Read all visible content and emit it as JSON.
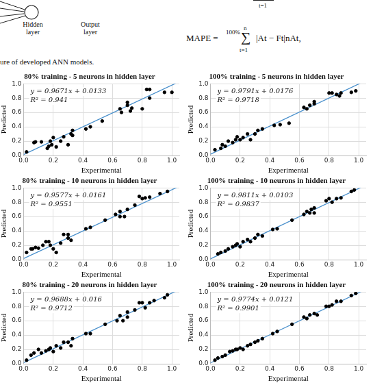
{
  "header": {
    "diagram_labels": [
      "Hidden layer",
      "Output layer"
    ],
    "caption": "ure of developed ANN models.",
    "equation_fragment_top": "t=1",
    "equation": {
      "lhs": "MAPE =",
      "prefix": "100%",
      "sum_symbol": "∑",
      "sum_upper": "n",
      "sum_lower": "t=1",
      "body": "|At − Ft|nAt,"
    }
  },
  "chart_data": [
    {
      "type": "scatter",
      "title": "80% training - 5 neurons in hidden layer",
      "x_label": "Experimental",
      "y_label": "Predicted",
      "xlim": [
        0,
        1.05
      ],
      "ylim": [
        0,
        1.0
      ],
      "xticks": [
        {
          "value": 0,
          "label": "0.0"
        },
        {
          "value": 0.2,
          "label": "0.2"
        },
        {
          "value": 0.4,
          "label": "0.4"
        },
        {
          "value": 0.6,
          "label": "0.6"
        },
        {
          "value": 0.8,
          "label": "0.8"
        },
        {
          "value": 1.0,
          "label": "1.0"
        }
      ],
      "yticks": [
        {
          "value": 0,
          "label": "0.0"
        },
        {
          "value": 0.2,
          "label": "0.2"
        },
        {
          "value": 0.4,
          "label": "0.4"
        },
        {
          "value": 0.6,
          "label": "0.6"
        },
        {
          "value": 0.8,
          "label": "0.8"
        },
        {
          "value": 1.0,
          "label": "1.0"
        }
      ],
      "grid": true,
      "points": {
        "color": "#000000",
        "marker": "circle",
        "x": [
          0.02,
          0.07,
          0.08,
          0.12,
          0.16,
          0.17,
          0.18,
          0.19,
          0.2,
          0.22,
          0.25,
          0.27,
          0.3,
          0.32,
          0.33,
          0.33,
          0.42,
          0.45,
          0.53,
          0.65,
          0.66,
          0.7,
          0.7,
          0.72,
          0.73,
          0.8,
          0.83,
          0.85,
          0.85,
          0.95,
          1.0
        ],
        "y": [
          0.05,
          0.18,
          0.19,
          0.19,
          0.1,
          0.13,
          0.2,
          0.15,
          0.25,
          0.12,
          0.2,
          0.26,
          0.15,
          0.3,
          0.28,
          0.35,
          0.37,
          0.4,
          0.48,
          0.65,
          0.6,
          0.7,
          0.74,
          0.62,
          0.66,
          0.65,
          0.92,
          0.92,
          0.8,
          0.88,
          0.88
        ]
      },
      "fit": {
        "slope": 0.9671,
        "intercept": 0.0133,
        "color": "#4a90cc",
        "line_style": "solid"
      },
      "annotations": [
        "y = 0.9671x + 0.0133",
        "R² = 0.941"
      ]
    },
    {
      "type": "scatter",
      "title": "100% training - 5 neurons in hidden layer",
      "x_label": "Experimental",
      "y_label": "Predicted",
      "xlim": [
        0,
        1.05
      ],
      "ylim": [
        0,
        1.0
      ],
      "xticks": [
        {
          "value": 0,
          "label": "0.0"
        },
        {
          "value": 0.2,
          "label": "0.2"
        },
        {
          "value": 0.4,
          "label": "0.4"
        },
        {
          "value": 0.6,
          "label": "0.6"
        },
        {
          "value": 0.8,
          "label": "0.8"
        },
        {
          "value": 1.0,
          "label": "1.0"
        }
      ],
      "yticks": [
        {
          "value": 0,
          "label": "0.0"
        },
        {
          "value": 0.2,
          "label": "0.2"
        },
        {
          "value": 0.4,
          "label": "0.4"
        },
        {
          "value": 0.6,
          "label": "0.6"
        },
        {
          "value": 0.8,
          "label": "0.8"
        },
        {
          "value": 1.0,
          "label": "1.0"
        }
      ],
      "grid": true,
      "points": {
        "color": "#000000",
        "marker": "circle",
        "x": [
          0.03,
          0.07,
          0.08,
          0.1,
          0.12,
          0.15,
          0.17,
          0.18,
          0.2,
          0.22,
          0.25,
          0.27,
          0.3,
          0.32,
          0.35,
          0.43,
          0.47,
          0.53,
          0.63,
          0.65,
          0.67,
          0.7,
          0.7,
          0.8,
          0.82,
          0.85,
          0.87,
          0.88,
          0.95,
          0.98
        ],
        "y": [
          0.08,
          0.1,
          0.15,
          0.13,
          0.2,
          0.18,
          0.22,
          0.26,
          0.22,
          0.25,
          0.3,
          0.22,
          0.3,
          0.35,
          0.37,
          0.42,
          0.43,
          0.45,
          0.67,
          0.65,
          0.7,
          0.72,
          0.75,
          0.87,
          0.87,
          0.85,
          0.83,
          0.87,
          0.88,
          0.9
        ]
      },
      "fit": {
        "slope": 0.9791,
        "intercept": 0.0176,
        "color": "#4a90cc",
        "line_style": "solid"
      },
      "annotations": [
        "y = 0.9791x + 0.0176",
        "R² = 0.9718"
      ]
    },
    {
      "type": "scatter",
      "title": "80% training - 10 neurons in hidden layer",
      "x_label": "Experimental",
      "y_label": "Predicted",
      "xlim": [
        0,
        1.05
      ],
      "ylim": [
        0,
        1.0
      ],
      "xticks": [
        {
          "value": 0,
          "label": "0.0"
        },
        {
          "value": 0.2,
          "label": "0.2"
        },
        {
          "value": 0.4,
          "label": "0.4"
        },
        {
          "value": 0.6,
          "label": "0.6"
        },
        {
          "value": 0.8,
          "label": "0.8"
        },
        {
          "value": 1.0,
          "label": "1.0"
        }
      ],
      "yticks": [
        {
          "value": 0,
          "label": "0.0"
        },
        {
          "value": 0.2,
          "label": "0.2"
        },
        {
          "value": 0.4,
          "label": "0.4"
        },
        {
          "value": 0.6,
          "label": "0.6"
        },
        {
          "value": 0.8,
          "label": "0.8"
        },
        {
          "value": 1.0,
          "label": "1.0"
        }
      ],
      "grid": true,
      "points": {
        "color": "#000000",
        "marker": "circle",
        "x": [
          0.02,
          0.05,
          0.06,
          0.08,
          0.1,
          0.13,
          0.15,
          0.17,
          0.18,
          0.2,
          0.22,
          0.25,
          0.27,
          0.3,
          0.3,
          0.32,
          0.42,
          0.45,
          0.55,
          0.62,
          0.65,
          0.65,
          0.68,
          0.7,
          0.75,
          0.78,
          0.8,
          0.82,
          0.85,
          0.92,
          0.97
        ],
        "y": [
          0.1,
          0.15,
          0.15,
          0.17,
          0.16,
          0.2,
          0.25,
          0.25,
          0.2,
          0.15,
          0.1,
          0.23,
          0.35,
          0.35,
          0.3,
          0.27,
          0.43,
          0.45,
          0.55,
          0.63,
          0.6,
          0.67,
          0.6,
          0.7,
          0.76,
          0.88,
          0.85,
          0.86,
          0.87,
          0.92,
          0.95
        ]
      },
      "fit": {
        "slope": 0.9577,
        "intercept": 0.0161,
        "color": "#4a90cc",
        "line_style": "solid"
      },
      "annotations": [
        "y = 0.9577x + 0.0161",
        "R² = 0.9551"
      ]
    },
    {
      "type": "scatter",
      "title": "100% training - 10 neurons in hidden layer",
      "x_label": "Experimental",
      "y_label": "Predicted",
      "xlim": [
        0,
        1.05
      ],
      "ylim": [
        0,
        1.0
      ],
      "xticks": [
        {
          "value": 0,
          "label": "0.0"
        },
        {
          "value": 0.2,
          "label": "0.2"
        },
        {
          "value": 0.4,
          "label": "0.4"
        },
        {
          "value": 0.6,
          "label": "0.6"
        },
        {
          "value": 0.8,
          "label": "0.8"
        },
        {
          "value": 1.0,
          "label": "1.0"
        }
      ],
      "yticks": [
        {
          "value": 0,
          "label": "0.0"
        },
        {
          "value": 0.2,
          "label": "0.2"
        },
        {
          "value": 0.4,
          "label": "0.4"
        },
        {
          "value": 0.6,
          "label": "0.6"
        },
        {
          "value": 0.8,
          "label": "0.8"
        },
        {
          "value": 1.0,
          "label": "1.0"
        }
      ],
      "grid": true,
      "points": {
        "color": "#000000",
        "marker": "circle",
        "x": [
          0.05,
          0.07,
          0.1,
          0.12,
          0.15,
          0.17,
          0.18,
          0.2,
          0.22,
          0.25,
          0.27,
          0.3,
          0.32,
          0.35,
          0.42,
          0.45,
          0.55,
          0.63,
          0.65,
          0.67,
          0.68,
          0.7,
          0.7,
          0.78,
          0.8,
          0.82,
          0.85,
          0.88,
          0.95,
          0.97
        ],
        "y": [
          0.08,
          0.1,
          0.12,
          0.15,
          0.18,
          0.2,
          0.22,
          0.18,
          0.25,
          0.28,
          0.25,
          0.3,
          0.35,
          0.33,
          0.42,
          0.43,
          0.55,
          0.63,
          0.67,
          0.65,
          0.7,
          0.72,
          0.65,
          0.82,
          0.85,
          0.8,
          0.85,
          0.86,
          0.95,
          0.97
        ]
      },
      "fit": {
        "slope": 0.9811,
        "intercept": 0.0103,
        "color": "#4a90cc",
        "line_style": "solid"
      },
      "annotations": [
        "y = 0.9811x + 0.0103",
        "R² = 0.9837"
      ]
    },
    {
      "type": "scatter",
      "title": "80% training - 20 neurons in hidden layer",
      "x_label": "Experimental",
      "y_label": "Predicted",
      "xlim": [
        0,
        1.05
      ],
      "ylim": [
        0,
        1.0
      ],
      "xticks": [
        {
          "value": 0,
          "label": "0.0"
        },
        {
          "value": 0.2,
          "label": "0.2"
        },
        {
          "value": 0.4,
          "label": "0.4"
        },
        {
          "value": 0.6,
          "label": "0.6"
        },
        {
          "value": 0.8,
          "label": "0.8"
        },
        {
          "value": 1.0,
          "label": "1.0"
        }
      ],
      "yticks": [
        {
          "value": 0,
          "label": "0.0"
        },
        {
          "value": 0.2,
          "label": "0.2"
        },
        {
          "value": 0.4,
          "label": "0.4"
        },
        {
          "value": 0.6,
          "label": "0.6"
        },
        {
          "value": 0.8,
          "label": "0.8"
        },
        {
          "value": 1.0,
          "label": "1.0"
        }
      ],
      "grid": true,
      "points": {
        "color": "#000000",
        "marker": "circle",
        "x": [
          0.02,
          0.05,
          0.07,
          0.1,
          0.12,
          0.15,
          0.17,
          0.18,
          0.2,
          0.22,
          0.25,
          0.27,
          0.3,
          0.32,
          0.33,
          0.42,
          0.45,
          0.55,
          0.63,
          0.65,
          0.67,
          0.7,
          0.7,
          0.75,
          0.78,
          0.8,
          0.82,
          0.85,
          0.88,
          0.95,
          0.97
        ],
        "y": [
          0.05,
          0.12,
          0.15,
          0.2,
          0.15,
          0.18,
          0.2,
          0.22,
          0.17,
          0.25,
          0.22,
          0.3,
          0.3,
          0.25,
          0.35,
          0.42,
          0.42,
          0.55,
          0.6,
          0.67,
          0.6,
          0.72,
          0.65,
          0.75,
          0.85,
          0.85,
          0.78,
          0.85,
          0.88,
          0.92,
          0.96
        ]
      },
      "fit": {
        "slope": 0.9688,
        "intercept": 0.016,
        "color": "#4a90cc",
        "line_style": "solid"
      },
      "annotations": [
        "y = 0.9688x + 0.016",
        "R² = 0.9712"
      ]
    },
    {
      "type": "scatter",
      "title": "100% training - 20 neurons in hidden layer",
      "x_label": "Experimental",
      "y_label": "Predicted",
      "xlim": [
        0,
        1.05
      ],
      "ylim": [
        0,
        1.0
      ],
      "xticks": [
        {
          "value": 0,
          "label": "0.0"
        },
        {
          "value": 0.2,
          "label": "0.2"
        },
        {
          "value": 0.4,
          "label": "0.4"
        },
        {
          "value": 0.6,
          "label": "0.6"
        },
        {
          "value": 0.8,
          "label": "0.8"
        },
        {
          "value": 1.0,
          "label": "1.0"
        }
      ],
      "yticks": [
        {
          "value": 0,
          "label": "0.0"
        },
        {
          "value": 0.2,
          "label": "0.2"
        },
        {
          "value": 0.4,
          "label": "0.4"
        },
        {
          "value": 0.6,
          "label": "0.6"
        },
        {
          "value": 0.8,
          "label": "0.8"
        },
        {
          "value": 1.0,
          "label": "1.0"
        }
      ],
      "grid": true,
      "points": {
        "color": "#000000",
        "marker": "circle",
        "x": [
          0.03,
          0.05,
          0.08,
          0.1,
          0.13,
          0.15,
          0.17,
          0.18,
          0.2,
          0.22,
          0.25,
          0.27,
          0.3,
          0.32,
          0.35,
          0.42,
          0.45,
          0.55,
          0.63,
          0.65,
          0.67,
          0.7,
          0.72,
          0.78,
          0.8,
          0.82,
          0.85,
          0.88,
          0.95,
          0.98
        ],
        "y": [
          0.05,
          0.08,
          0.1,
          0.12,
          0.17,
          0.18,
          0.2,
          0.2,
          0.22,
          0.2,
          0.25,
          0.27,
          0.3,
          0.32,
          0.35,
          0.42,
          0.45,
          0.55,
          0.65,
          0.63,
          0.68,
          0.7,
          0.68,
          0.8,
          0.8,
          0.82,
          0.87,
          0.87,
          0.95,
          0.98
        ]
      },
      "fit": {
        "slope": 0.9774,
        "intercept": 0.0121,
        "color": "#4a90cc",
        "line_style": "solid"
      },
      "annotations": [
        "y = 0.9774x + 0.0121",
        "R² = 0.9901"
      ]
    }
  ]
}
